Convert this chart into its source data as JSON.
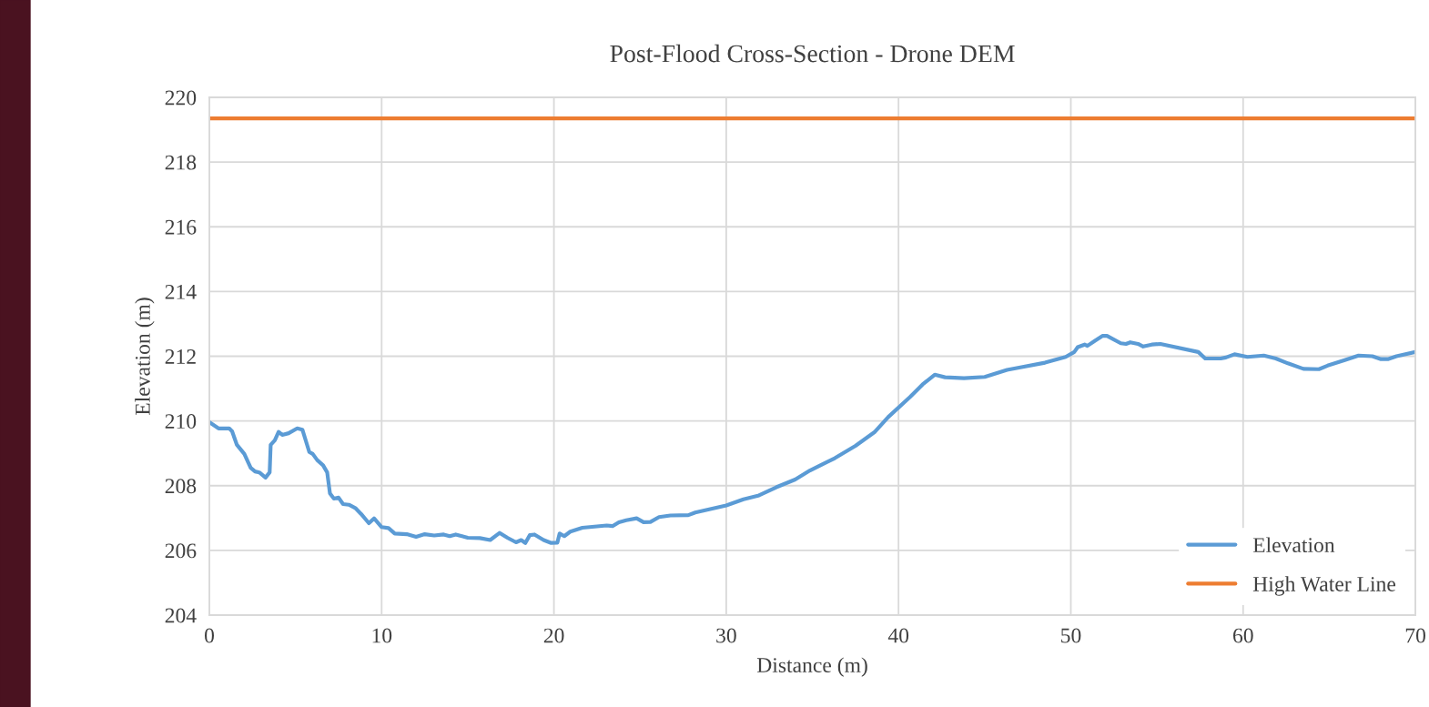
{
  "chart_data": {
    "type": "line",
    "title": "Post-Flood Cross-Section - Drone DEM",
    "xlabel": "Distance (m)",
    "ylabel": "Elevation (m)",
    "xlim": [
      0,
      70
    ],
    "xticks": [
      0,
      10,
      20,
      30,
      40,
      50,
      60,
      70
    ],
    "ylim": [
      204,
      220
    ],
    "yticks": [
      204,
      206,
      208,
      210,
      212,
      214,
      216,
      218,
      220
    ],
    "grid": true,
    "legend": "bottom right",
    "marker": "none",
    "line_style": "solid",
    "series": [
      {
        "name": "Elevation",
        "color": "#5b9bd5",
        "x": [
          0,
          0.53,
          1.15,
          1.32,
          1.6,
          2.03,
          2.4,
          2.65,
          2.9,
          3.26,
          3.5,
          3.56,
          3.8,
          4.02,
          4.23,
          4.6,
          5.1,
          5.4,
          5.8,
          6.0,
          6.26,
          6.6,
          6.84,
          7.0,
          7.23,
          7.5,
          7.76,
          8.1,
          8.47,
          8.8,
          9.26,
          9.56,
          10.0,
          10.4,
          10.76,
          11.46,
          12.0,
          12.5,
          13.05,
          13.6,
          13.95,
          14.3,
          15.0,
          15.7,
          16.3,
          16.85,
          17.3,
          17.8,
          18.1,
          18.34,
          18.6,
          18.87,
          19.4,
          19.84,
          20.2,
          20.33,
          20.6,
          20.95,
          21.65,
          23.06,
          23.4,
          23.77,
          24.2,
          24.8,
          25.2,
          25.6,
          26.1,
          26.76,
          27.8,
          28.2,
          30.0,
          31.0,
          31.9,
          32.9,
          34.0,
          34.86,
          36.3,
          37.5,
          38.6,
          39.4,
          40.67,
          41.4,
          42.1,
          42.7,
          43.8,
          45.0,
          46.3,
          47.0,
          48.5,
          49.7,
          50.2,
          50.4,
          50.8,
          50.96,
          51.4,
          51.85,
          52.1,
          52.9,
          53.2,
          53.45,
          53.9,
          54.2,
          54.7,
          55.2,
          57.4,
          57.8,
          58.7,
          59.0,
          59.5,
          60.25,
          61.2,
          61.9,
          62.6,
          63.5,
          64.4,
          64.9,
          65.9,
          66.7,
          67.5,
          68.0,
          68.4,
          68.9,
          70.0
        ],
        "values": [
          209.96,
          209.77,
          209.77,
          209.68,
          209.26,
          208.98,
          208.55,
          208.44,
          208.41,
          208.25,
          208.41,
          209.26,
          209.4,
          209.66,
          209.57,
          209.62,
          209.77,
          209.73,
          209.04,
          208.98,
          208.79,
          208.63,
          208.41,
          207.76,
          207.6,
          207.63,
          207.43,
          207.41,
          207.31,
          207.13,
          206.84,
          206.99,
          206.72,
          206.69,
          206.52,
          206.5,
          206.42,
          206.5,
          206.46,
          206.49,
          206.44,
          206.49,
          206.39,
          206.38,
          206.32,
          206.54,
          206.39,
          206.25,
          206.32,
          206.23,
          206.47,
          206.49,
          206.32,
          206.23,
          206.24,
          206.52,
          206.44,
          206.58,
          206.7,
          206.77,
          206.75,
          206.87,
          206.93,
          206.99,
          206.87,
          206.88,
          207.03,
          207.08,
          207.09,
          207.17,
          207.39,
          207.58,
          207.7,
          207.95,
          208.19,
          208.47,
          208.85,
          209.23,
          209.65,
          210.12,
          210.74,
          211.13,
          211.43,
          211.35,
          211.32,
          211.36,
          211.58,
          211.65,
          211.8,
          211.98,
          212.13,
          212.28,
          212.36,
          212.32,
          212.48,
          212.63,
          212.63,
          212.4,
          212.38,
          212.43,
          212.38,
          212.3,
          212.36,
          212.38,
          212.13,
          211.93,
          211.93,
          211.96,
          212.06,
          211.98,
          212.02,
          211.93,
          211.78,
          211.61,
          211.6,
          211.71,
          211.88,
          212.02,
          212.0,
          211.91,
          211.91,
          212.0,
          212.13
        ]
      },
      {
        "name": "High Water Line",
        "color": "#ed7d31",
        "x": [
          0,
          70
        ],
        "values": [
          219.35,
          219.35
        ]
      }
    ]
  }
}
